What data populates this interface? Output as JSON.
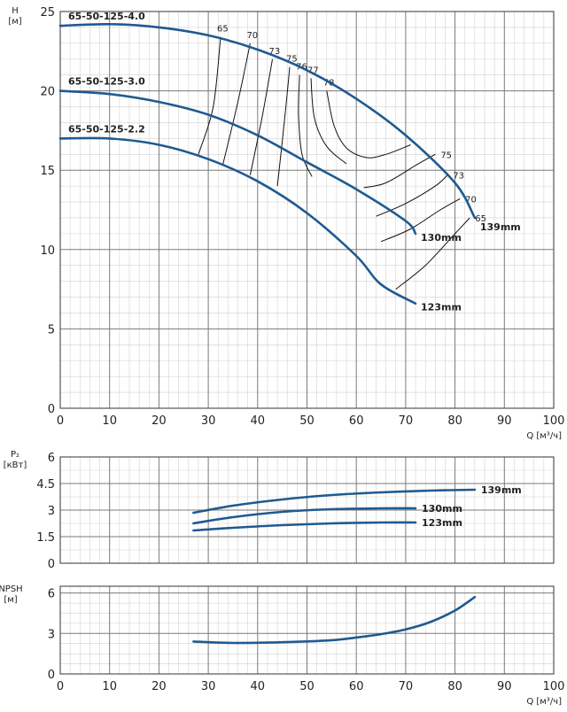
{
  "chart_data": [
    {
      "type": "line",
      "panel": "head",
      "ylabel_lines": [
        "H",
        "[м]"
      ],
      "xlabel": "Q [м³/ч]",
      "xlim": [
        0,
        100
      ],
      "ylim": [
        0,
        25
      ],
      "xticks": [
        0,
        10,
        20,
        30,
        40,
        50,
        60,
        70,
        80,
        90,
        100
      ],
      "yticks": [
        0,
        5,
        10,
        15,
        20,
        25
      ],
      "grid": true,
      "series": [
        {
          "name": "65-50-125-4.0",
          "diameter_label": "139mm",
          "color": "#1f5a91",
          "x": [
            0,
            10,
            20,
            30,
            40,
            50,
            60,
            70,
            80,
            84
          ],
          "y": [
            24.1,
            24.2,
            24.0,
            23.5,
            22.6,
            21.3,
            19.5,
            17.2,
            14.2,
            12.0
          ]
        },
        {
          "name": "65-50-125-3.0",
          "diameter_label": "130mm",
          "color": "#1f5a91",
          "x": [
            0,
            10,
            20,
            30,
            40,
            50,
            60,
            70,
            72
          ],
          "y": [
            20.0,
            19.8,
            19.3,
            18.5,
            17.2,
            15.5,
            13.8,
            11.8,
            11.0
          ]
        },
        {
          "name": "65-50-125-2.2",
          "diameter_label": "123mm",
          "color": "#1f5a91",
          "x": [
            0,
            10,
            20,
            30,
            40,
            50,
            60,
            65,
            72
          ],
          "y": [
            17.0,
            17.0,
            16.6,
            15.7,
            14.3,
            12.3,
            9.6,
            7.8,
            6.6
          ]
        }
      ],
      "efficiency_curves": [
        {
          "label": "65",
          "x": [
            32.5,
            31.0,
            28.0
          ],
          "y": [
            23.4,
            19.0,
            16.0
          ]
        },
        {
          "label": "70",
          "x": [
            38.5,
            36.0,
            33.0
          ],
          "y": [
            23.0,
            19.3,
            15.4
          ]
        },
        {
          "label": "73",
          "x": [
            43.0,
            41.0,
            38.5
          ],
          "y": [
            22.0,
            18.5,
            14.7
          ]
        },
        {
          "label": "75",
          "x": [
            46.5,
            45.5,
            44.0
          ],
          "y": [
            21.5,
            18.3,
            14.0
          ]
        },
        {
          "label": "76",
          "x": [
            48.5,
            48.3,
            49.0,
            51.0
          ],
          "y": [
            21.0,
            18.5,
            16.0,
            14.6
          ]
        },
        {
          "label": "77",
          "x": [
            50.8,
            51.5,
            54.0,
            58.0
          ],
          "y": [
            20.8,
            18.3,
            16.5,
            15.4
          ]
        },
        {
          "label": "78",
          "x": [
            54.0,
            55.5,
            58.0,
            62.0,
            66.0,
            71.0
          ],
          "y": [
            20.0,
            17.8,
            16.4,
            15.8,
            16.0,
            16.6
          ]
        },
        {
          "label": "75",
          "x": [
            61.5,
            66.0,
            72.0,
            76.0
          ],
          "y": [
            13.9,
            14.2,
            15.3,
            16.0
          ]
        },
        {
          "label": "73",
          "x": [
            64.0,
            70.0,
            76.0,
            78.5
          ],
          "y": [
            12.1,
            12.9,
            14.0,
            14.7
          ]
        },
        {
          "label": "70",
          "x": [
            65.0,
            71.0,
            77.0,
            81.0
          ],
          "y": [
            10.5,
            11.3,
            12.5,
            13.2
          ]
        },
        {
          "label": "65",
          "x": [
            68.0,
            74.0,
            80.0,
            83.0
          ],
          "y": [
            7.5,
            9.0,
            11.0,
            12.0
          ]
        }
      ]
    },
    {
      "type": "line",
      "panel": "power",
      "ylabel_lines": [
        "P₂",
        "[кВт]"
      ],
      "xlim": [
        0,
        100
      ],
      "ylim": [
        0,
        6
      ],
      "xticks": [
        0,
        10,
        20,
        30,
        40,
        50,
        60,
        70,
        80,
        90,
        100
      ],
      "yticks": [
        0,
        1.5,
        3,
        4.5,
        6
      ],
      "yticklabels": [
        "0",
        "1.5",
        "3",
        "4.5",
        "6"
      ],
      "grid": true,
      "series": [
        {
          "name": "139mm",
          "color": "#1f5a91",
          "x": [
            27,
            35,
            45,
            55,
            65,
            75,
            84
          ],
          "y": [
            2.85,
            3.25,
            3.6,
            3.85,
            4.0,
            4.1,
            4.15
          ]
        },
        {
          "name": "130mm",
          "color": "#1f5a91",
          "x": [
            27,
            35,
            45,
            55,
            65,
            72
          ],
          "y": [
            2.25,
            2.6,
            2.9,
            3.05,
            3.1,
            3.1
          ]
        },
        {
          "name": "123mm",
          "color": "#1f5a91",
          "x": [
            27,
            35,
            45,
            55,
            65,
            72
          ],
          "y": [
            1.85,
            2.0,
            2.15,
            2.25,
            2.3,
            2.3
          ]
        }
      ]
    },
    {
      "type": "line",
      "panel": "npsh",
      "ylabel_lines": [
        "NPSH",
        "[м]"
      ],
      "xlabel": "Q [м³/ч]",
      "xlim": [
        0,
        100
      ],
      "ylim": [
        0,
        6.5
      ],
      "xticks": [
        0,
        10,
        20,
        30,
        40,
        50,
        60,
        70,
        80,
        90,
        100
      ],
      "yticks": [
        0,
        3,
        6
      ],
      "grid": true,
      "series": [
        {
          "name": "",
          "color": "#1f5a91",
          "x": [
            27,
            35,
            45,
            55,
            60,
            65,
            70,
            75,
            80,
            84
          ],
          "y": [
            2.4,
            2.3,
            2.35,
            2.5,
            2.7,
            2.95,
            3.3,
            3.85,
            4.7,
            5.7
          ]
        }
      ]
    }
  ]
}
